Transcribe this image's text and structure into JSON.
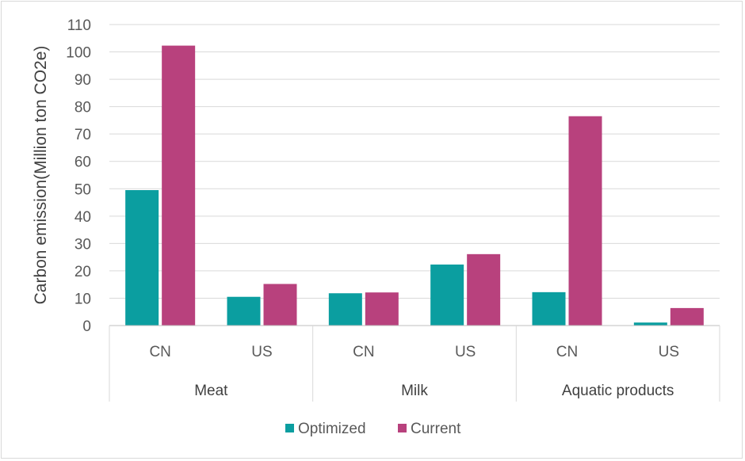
{
  "chart_data": {
    "type": "bar",
    "ylabel": "Carbon emission(Million ton CO2e)",
    "ylim": [
      0,
      110
    ],
    "yticks": [
      0,
      10,
      20,
      30,
      40,
      50,
      60,
      70,
      80,
      90,
      100,
      110
    ],
    "grid": true,
    "legend_placement": "bottom",
    "groups": [
      {
        "name": "Meat",
        "categories": [
          "CN",
          "US"
        ]
      },
      {
        "name": "Milk",
        "categories": [
          "CN",
          "US"
        ]
      },
      {
        "name": "Aquatic products",
        "categories": [
          "CN",
          "US"
        ]
      }
    ],
    "categories": [
      "CN",
      "US",
      "CN",
      "US",
      "CN",
      "US"
    ],
    "series": [
      {
        "name": "Optimized",
        "color": "#0b9ea0",
        "values": [
          49.5,
          10.5,
          11.8,
          22.3,
          12.2,
          1.1
        ]
      },
      {
        "name": "Current",
        "color": "#b8417d",
        "values": [
          102.3,
          15.2,
          12.1,
          26.1,
          76.5,
          6.4
        ]
      }
    ]
  }
}
